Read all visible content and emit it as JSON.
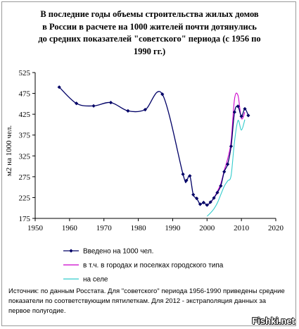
{
  "chart_data": {
    "type": "line",
    "title": "В последние годы объемы строительства жилых домов\nв России в расчете на 1000 жителей почти дотянулись\nдо средних показателей \"советского\" периода (с 1956 по\n1990 гг.)",
    "ylabel": "м2 на 1000 чел.",
    "xlabel": "",
    "xlim": [
      1950,
      2020
    ],
    "ylim": [
      175,
      525
    ],
    "x_ticks": [
      "1950",
      "1960",
      "1970",
      "1980",
      "1990",
      "2000",
      "2010",
      "2020"
    ],
    "y_ticks": [
      "175",
      "225",
      "275",
      "325",
      "375",
      "425",
      "475",
      "525"
    ],
    "grid": false,
    "legend": "bottom",
    "series": [
      {
        "name": "Введено на 1000 чел.",
        "color": "#000066",
        "markers": true,
        "x": [
          1957,
          1962,
          1967,
          1972,
          1977,
          1982,
          1987,
          1993,
          1994,
          1995,
          1996,
          1997,
          1998,
          1999,
          2000,
          2001,
          2002,
          2003,
          2004,
          2005,
          2006,
          2007,
          2008,
          2009,
          2010,
          2011,
          2012
        ],
        "y": [
          490,
          451,
          445,
          453,
          433,
          436,
          473,
          281,
          266,
          277,
          232,
          223,
          209,
          213,
          207,
          214,
          224,
          237,
          253,
          287,
          305,
          348,
          430,
          444,
          420,
          438,
          422
        ]
      },
      {
        "name": "в т.ч. в городах и поселках городского типа",
        "color": "#cc00cc",
        "markers": false,
        "x": [
          2000,
          2001,
          2002,
          2003,
          2004,
          2005,
          2006,
          2007,
          2008,
          2009,
          2010,
          2011
        ],
        "y": [
          207,
          213,
          224,
          240,
          258,
          290,
          318,
          360,
          462,
          470,
          415,
          430
        ]
      },
      {
        "name": "на селе",
        "color": "#33cccc",
        "markers": false,
        "x": [
          2000,
          2001,
          2002,
          2003,
          2004,
          2005,
          2006,
          2007,
          2008,
          2009,
          2010,
          2011
        ],
        "y": [
          180,
          188,
          198,
          212,
          232,
          252,
          265,
          278,
          360,
          410,
          387,
          412
        ]
      }
    ]
  },
  "source_text": "Источник: по данным Росстата. Для \"советского\" периода 1956-1990 приведены средние показатели по соответствующим пятилеткам. Для 2012 - экстраполяция данных за первое полугодие.",
  "watermark": "Fishki.net"
}
